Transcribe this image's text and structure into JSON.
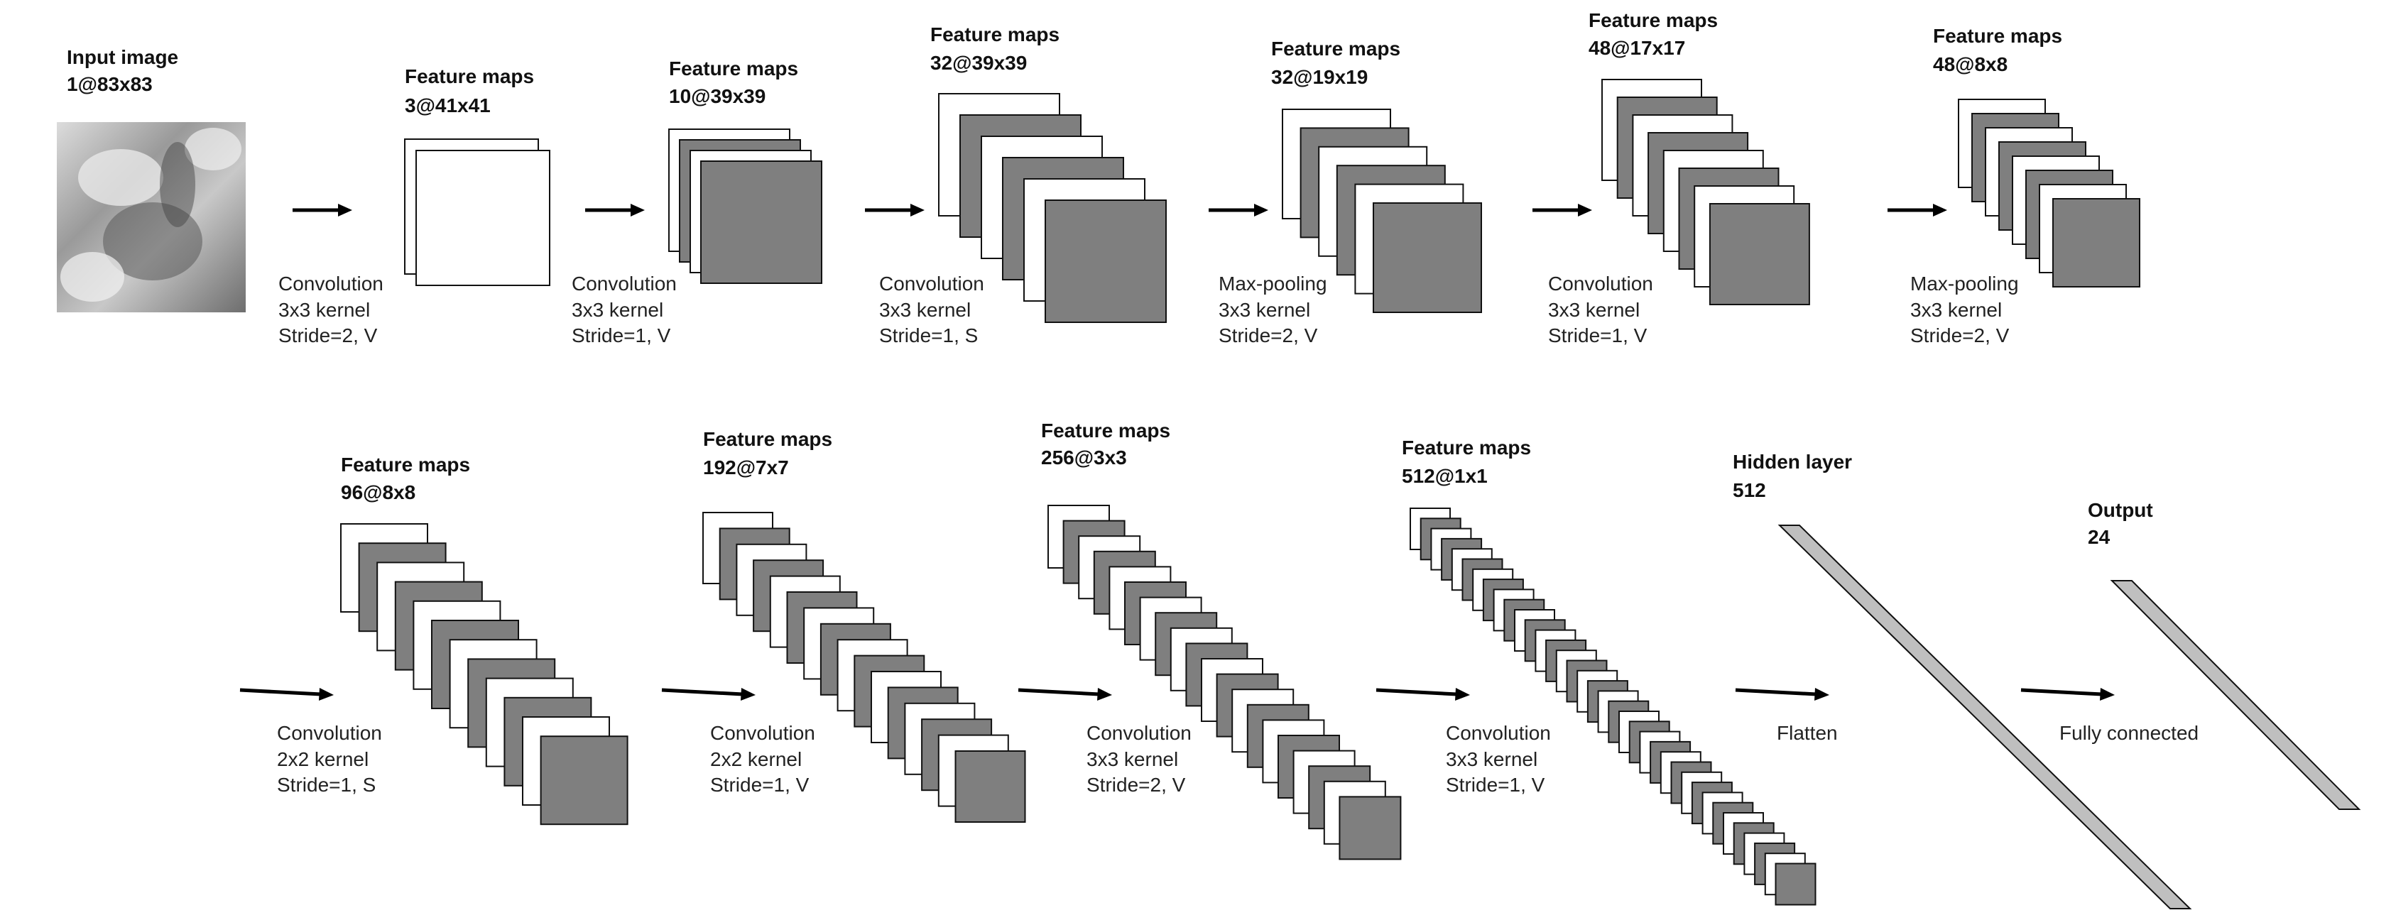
{
  "colors": {
    "background": "#ffffff",
    "map_white": "#ffffff",
    "map_gray": "#7f7f7f",
    "stroke": "#111111",
    "dense_fill": "#bfbfbf",
    "arrow": "#000000"
  },
  "input": {
    "title": "Input image",
    "size": "1@83x83"
  },
  "row1": {
    "stages": [
      {
        "op": "Convolution",
        "kernel": "3x3 kernel",
        "stride": "Stride=2, V",
        "title": "Feature  maps",
        "size": "3@41x41"
      },
      {
        "op": "Convolution",
        "kernel": "3x3 kernel",
        "stride": "Stride=1, V",
        "title": "Feature  maps",
        "size": "10@39x39"
      },
      {
        "op": "Convolution",
        "kernel": "3x3 kernel",
        "stride": "Stride=1, S",
        "title": "Feature  maps",
        "size": "32@39x39"
      },
      {
        "op": "Max-pooling",
        "kernel": "3x3 kernel",
        "stride": "Stride=2, V",
        "title": "Feature  maps",
        "size": "32@19x19"
      },
      {
        "op": "Convolution",
        "kernel": "3x3 kernel",
        "stride": "Stride=1, V",
        "title": "Feature  maps",
        "size": "48@17x17"
      },
      {
        "op": "Max-pooling",
        "kernel": "3x3 kernel",
        "stride": "Stride=2, V",
        "title": "Feature  maps",
        "size": "48@8x8"
      }
    ]
  },
  "row2": {
    "stages": [
      {
        "op": "Convolution",
        "kernel": "2x2 kernel",
        "stride": "Stride=1, S",
        "title": "Feature  maps",
        "size": "96@8x8"
      },
      {
        "op": "Convolution",
        "kernel": "2x2 kernel",
        "stride": "Stride=1, V",
        "title": "Feature  maps",
        "size": "192@7x7"
      },
      {
        "op": "Convolution",
        "kernel": "3x3 kernel",
        "stride": "Stride=2, V",
        "title": "Feature  maps",
        "size": "256@3x3"
      },
      {
        "op": "Convolution",
        "kernel": "3x3 kernel",
        "stride": "Stride=1, V",
        "title": "Feature  maps",
        "size": "512@1x1"
      }
    ],
    "flatten": {
      "op": "Flatten",
      "title": "Hidden layer",
      "size": "512"
    },
    "fc": {
      "op": "Fully connected",
      "title": "Output",
      "size": "24"
    }
  }
}
